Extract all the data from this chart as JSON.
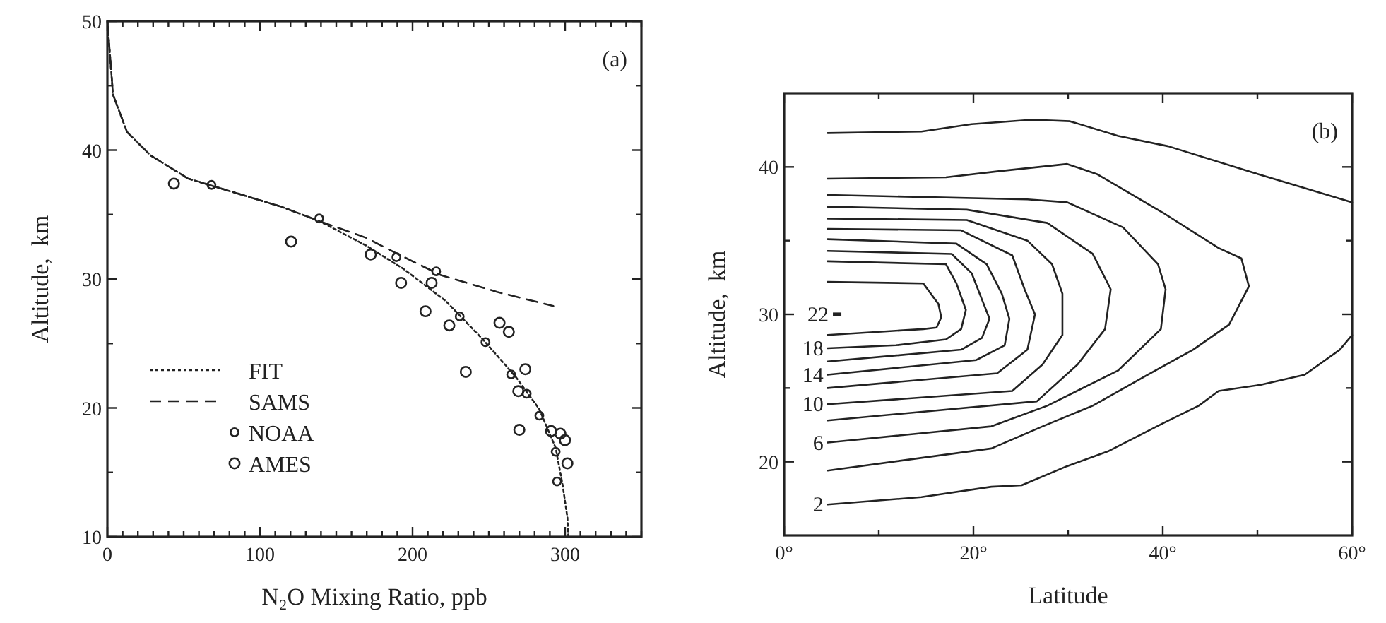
{
  "chart_data": [
    {
      "type": "line",
      "xlabel": "N₂O Mixing Ratio, ppb",
      "ylabel": "Altitude,  km",
      "annotations": [
        "(a)"
      ],
      "xlim": [
        0,
        350
      ],
      "ylim": [
        10,
        50
      ],
      "xticks": [
        0,
        {
          "value": 10,
          "label": null
        },
        {
          "value": 20,
          "label": null
        },
        {
          "value": 30,
          "label": null
        },
        {
          "value": 40,
          "label": null
        },
        {
          "value": 50,
          "label": null
        },
        {
          "value": 60,
          "label": null
        },
        {
          "value": 70,
          "label": null
        },
        {
          "value": 80,
          "label": null
        },
        {
          "value": 90,
          "label": null
        },
        100,
        {
          "value": 110,
          "label": null
        },
        {
          "value": 120,
          "label": null
        },
        {
          "value": 130,
          "label": null
        },
        {
          "value": 140,
          "label": null
        },
        {
          "value": 150,
          "label": null
        },
        {
          "value": 160,
          "label": null
        },
        {
          "value": 170,
          "label": null
        },
        {
          "value": 180,
          "label": null
        },
        {
          "value": 190,
          "label": null
        },
        200,
        {
          "value": 210,
          "label": null
        },
        {
          "value": 220,
          "label": null
        },
        {
          "value": 230,
          "label": null
        },
        {
          "value": 240,
          "label": null
        },
        {
          "value": 250,
          "label": null
        },
        {
          "value": 260,
          "label": null
        },
        {
          "value": 270,
          "label": null
        },
        {
          "value": 280,
          "label": null
        },
        {
          "value": 290,
          "label": null
        },
        300,
        {
          "value": 310,
          "label": null
        },
        {
          "value": 320,
          "label": null
        },
        {
          "value": 330,
          "label": null
        },
        {
          "value": 340,
          "label": null
        },
        {
          "value": 350,
          "label": null
        }
      ],
      "yticks": [
        10,
        {
          "value": 15,
          "label": null
        },
        20,
        {
          "value": 25,
          "label": null
        },
        30,
        {
          "value": 35,
          "label": null
        },
        40,
        {
          "value": 45,
          "label": null
        },
        50
      ],
      "legend": "bottom left",
      "grid": false,
      "series": [
        {
          "name": "FIT",
          "type": "line",
          "line_style": "dotted",
          "color": "#222222",
          "x": [
            0,
            3.7,
            12.9,
            28.2,
            52.8,
            83.5,
            114.2,
            138.8,
            169.5,
            193.9,
            221.7,
            246.2,
            267.7,
            283.1,
            293.8,
            298.4,
            301.5,
            302.1
          ],
          "values": [
            50,
            44.3,
            41.4,
            39.6,
            37.8,
            36.7,
            35.6,
            34.5,
            32.6,
            30.8,
            28.3,
            25.3,
            22.4,
            19.9,
            16.9,
            14,
            11.5,
            10
          ]
        },
        {
          "name": "SAMS",
          "type": "line",
          "line_style": "dashed",
          "color": "#222222",
          "x": [
            0,
            3.7,
            12.9,
            28.2,
            52.8,
            83.5,
            114.2,
            138.8,
            169.5,
            191,
            218.6,
            255.4,
            292.3
          ],
          "values": [
            50,
            44.3,
            41.4,
            39.6,
            37.8,
            36.7,
            35.6,
            34.5,
            33.2,
            31.9,
            30.3,
            29,
            27.9
          ]
        },
        {
          "name": "NOAA",
          "type": "scatter",
          "marker": "circle",
          "color": "#222222",
          "x": [
            68.2,
            138.8,
            189.4,
            215.5,
            230.9,
            247.8,
            264.6,
            274.8,
            283.1,
            293.8,
            294.7
          ],
          "values": [
            37.3,
            34.7,
            31.7,
            30.6,
            27.1,
            25.1,
            22.6,
            21.1,
            19.4,
            16.6,
            14.3
          ]
        },
        {
          "name": "AMES",
          "type": "scatter",
          "marker": "circle",
          "color": "#222222",
          "x": [
            43.6,
            120.4,
            172.6,
            192.5,
            212.5,
            208.5,
            224.1,
            234.9,
            257,
            263.1,
            273.9,
            269.3,
            270,
            290.8,
            296.9,
            299.9,
            301.5
          ],
          "values": [
            37.4,
            32.9,
            31.9,
            29.7,
            29.7,
            27.5,
            26.4,
            22.8,
            26.6,
            25.9,
            23,
            21.3,
            18.3,
            18.2,
            18,
            17.5,
            15.7
          ]
        }
      ]
    },
    {
      "type": "line",
      "xlabel": "Latitude",
      "ylabel": "Altitude,  km",
      "annotations": [
        "(b)"
      ],
      "xlim": [
        0,
        60
      ],
      "ylim": [
        15,
        45
      ],
      "xticks": [
        {
          "value": 0,
          "label": "0°"
        },
        {
          "value": 10,
          "label": null
        },
        {
          "value": 20,
          "label": "20°"
        },
        {
          "value": 30,
          "label": null
        },
        {
          "value": 40,
          "label": "40°"
        },
        {
          "value": 50,
          "label": null
        },
        {
          "value": 60,
          "label": "60°"
        }
      ],
      "yticks": [
        20,
        {
          "value": 25,
          "label": null
        },
        30,
        {
          "value": 35,
          "label": null
        },
        40
      ],
      "legend": false,
      "grid": false,
      "series": [
        {
          "color": "#222222",
          "x": [
            4.6,
            14.7,
            16.3,
            16.6,
            16.1,
            14.7,
            4.6
          ],
          "values": [
            32.2,
            32.1,
            30.7,
            29.8,
            29.1,
            29,
            28.6
          ]
        },
        {
          "name": "18",
          "color": "#222222",
          "x": [
            4.6,
            17.1,
            18.2,
            19.2,
            18.7,
            17.1,
            11.8,
            4.6
          ],
          "values": [
            33.6,
            33.4,
            32.1,
            30.3,
            29,
            28.3,
            27.9,
            27.7
          ]
        },
        {
          "color": "#222222",
          "x": [
            4.6,
            17.7,
            19.8,
            20.9,
            21.7,
            20.9,
            18.7,
            4.6
          ],
          "values": [
            34.3,
            34.1,
            32.8,
            31,
            29.7,
            28.4,
            27.6,
            26.8
          ]
        },
        {
          "name": "14",
          "color": "#222222",
          "x": [
            4.6,
            18.2,
            21.4,
            23,
            23.8,
            23.3,
            20.3,
            4.6
          ],
          "values": [
            35.1,
            34.8,
            33.4,
            31.4,
            29.7,
            27.9,
            26.9,
            25.9
          ]
        },
        {
          "color": "#222222",
          "x": [
            4.6,
            18.7,
            24.1,
            25.4,
            26.5,
            25.7,
            22.5,
            4.6
          ],
          "values": [
            35.8,
            35.7,
            34,
            31.7,
            30,
            27.6,
            26,
            25
          ]
        },
        {
          "name": "10",
          "color": "#222222",
          "x": [
            4.6,
            19.3,
            25.7,
            28.3,
            29.4,
            29.4,
            27.3,
            24.1,
            4.6
          ],
          "values": [
            36.5,
            36.4,
            35,
            33.4,
            31.4,
            28.6,
            26.6,
            24.8,
            23.9
          ]
        },
        {
          "color": "#222222",
          "x": [
            4.6,
            19.3,
            27.8,
            32.6,
            34.5,
            33.9,
            31,
            26.7,
            4.6
          ],
          "values": [
            37.3,
            37.1,
            36.2,
            34.1,
            31.7,
            29,
            26.6,
            24.1,
            22.8
          ]
        },
        {
          "name": "6",
          "color": "#222222",
          "x": [
            4.6,
            25.7,
            29.9,
            35.8,
            39.5,
            40.3,
            39.8,
            35.3,
            27.8,
            21.9,
            4.6
          ],
          "values": [
            38.1,
            37.8,
            37.6,
            35.9,
            33.4,
            31.7,
            29,
            26.2,
            23.8,
            22.4,
            21.3
          ]
        },
        {
          "color": "#222222",
          "x": [
            4.6,
            17.1,
            22.5,
            29.9,
            33.1,
            40,
            45.9,
            48.3,
            49.1,
            47,
            43.2,
            38.4,
            32.6,
            27.3,
            21.9,
            4.6
          ],
          "values": [
            39.2,
            39.3,
            39.7,
            40.2,
            39.5,
            36.9,
            34.5,
            33.8,
            31.9,
            29.3,
            27.6,
            25.9,
            23.8,
            22.4,
            20.9,
            19.4
          ]
        },
        {
          "color": "#222222",
          "x": [
            4.6,
            14.5,
            19.8,
            26.2,
            30.2,
            35.3,
            40.6,
            49.1,
            60
          ],
          "values": [
            42.3,
            42.4,
            42.9,
            43.2,
            43.1,
            42.1,
            41.4,
            39.7,
            37.6
          ]
        },
        {
          "name": "2",
          "color": "#222222",
          "x": [
            60,
            58.7,
            55,
            50.2,
            45.9,
            43.8,
            40,
            34.2,
            29.9,
            25.1,
            21.9,
            14.5,
            4.6
          ],
          "values": [
            28.6,
            27.6,
            25.9,
            25.2,
            24.8,
            23.8,
            22.6,
            20.7,
            19.7,
            18.4,
            18.3,
            17.6,
            17.1
          ]
        },
        {
          "name": "22",
          "type": "scatter",
          "marker": "square",
          "color": "#222222",
          "x": [
            5.6
          ],
          "values": [
            30
          ]
        }
      ]
    }
  ]
}
